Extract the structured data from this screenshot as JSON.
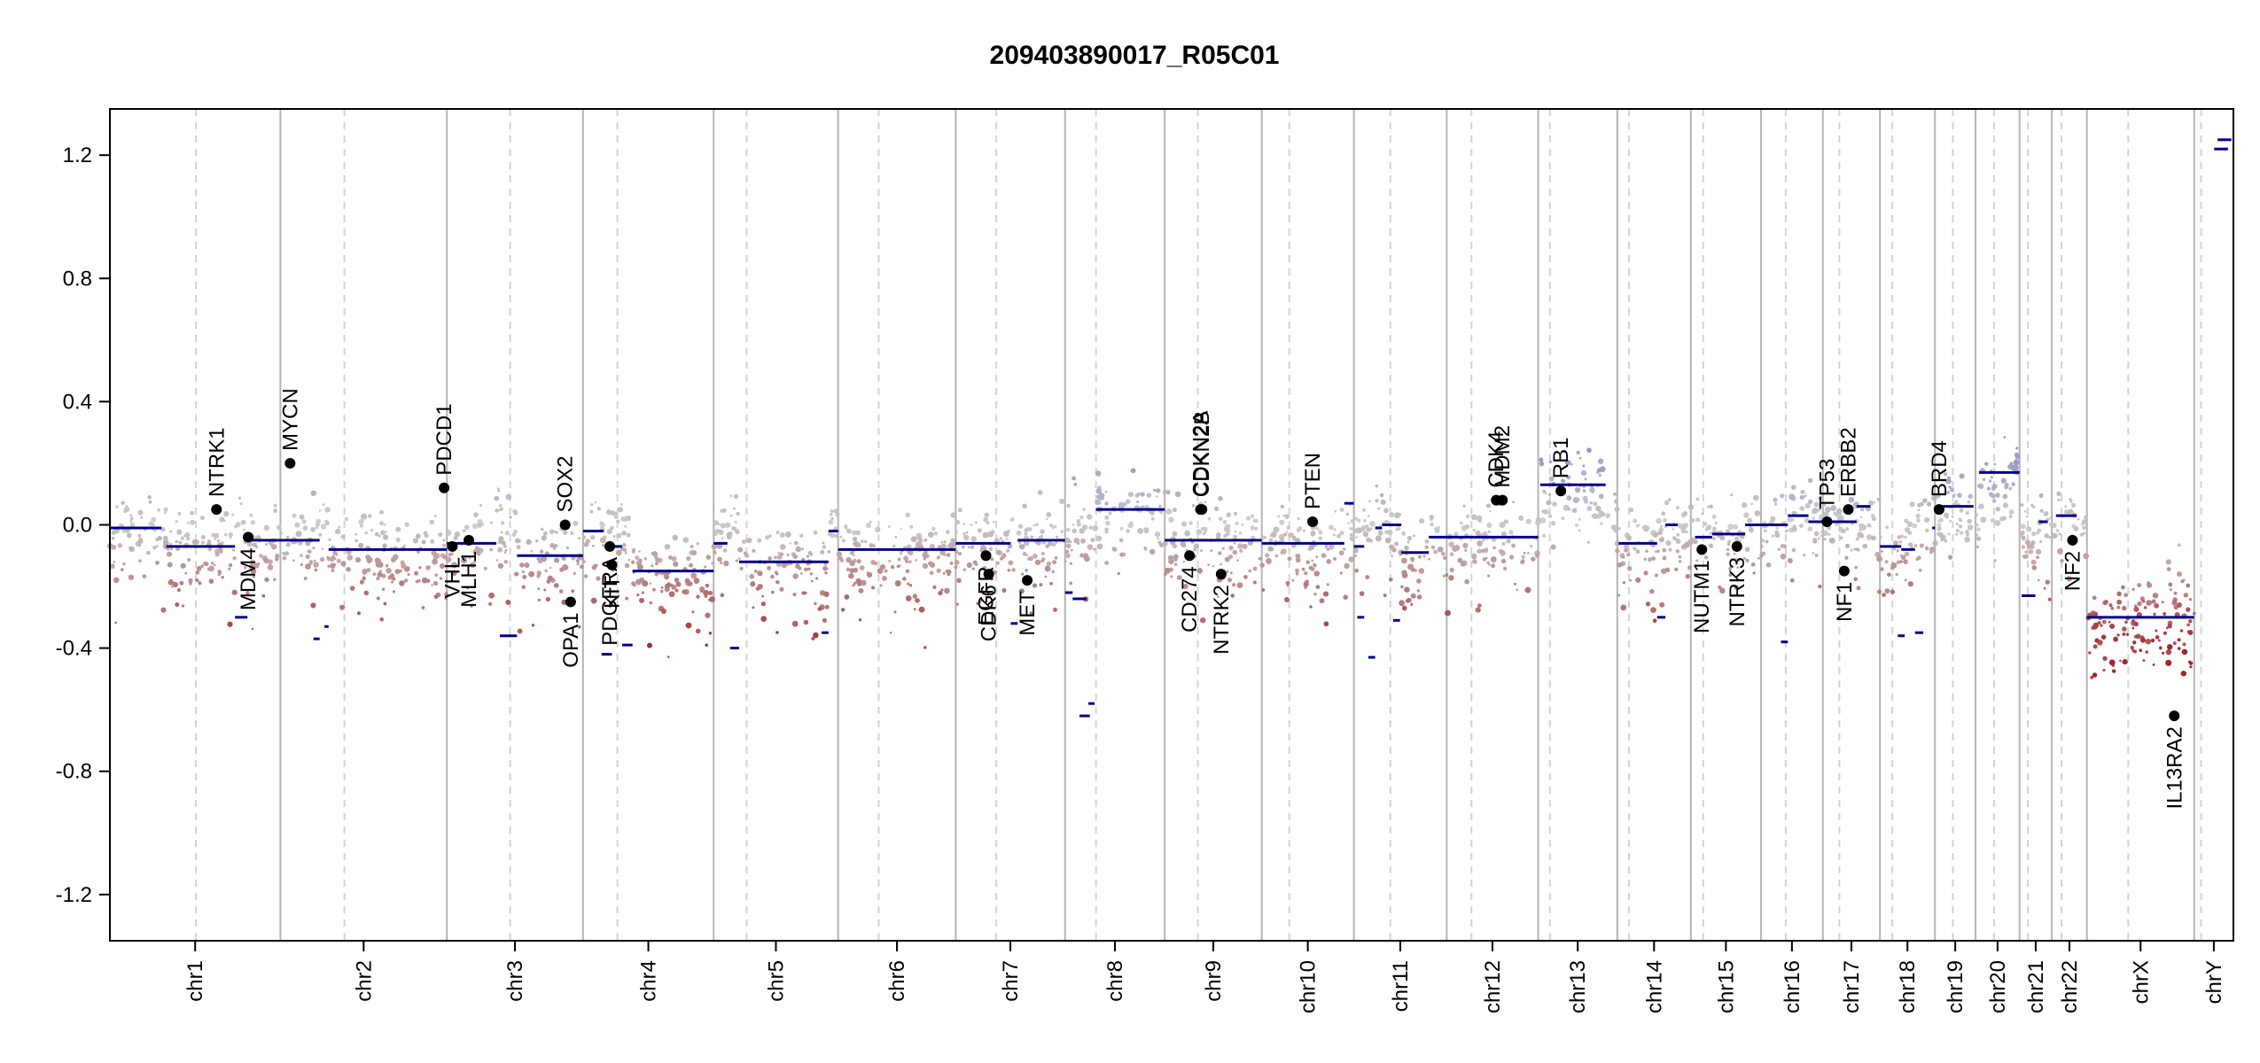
{
  "chart_data": {
    "type": "scatter",
    "title": "209403890017_R05C01",
    "xlabel": "",
    "ylabel": "",
    "ylim": [
      -1.35,
      1.35
    ],
    "yticks": [
      1.2,
      0.8,
      0.4,
      0.0,
      -0.4,
      -0.8,
      -1.2
    ],
    "ytick_labels": [
      "1.2",
      "0.8",
      "0.4",
      "0.0",
      "-0.4",
      "-0.8",
      "-1.2"
    ],
    "grid": false,
    "colors": {
      "gain": "#8f91c7",
      "loss": "#a0282a",
      "neutral": "#c8c8c8",
      "segment": "#00008b",
      "boundary": "#b4b4b4",
      "gene_point": "#000000"
    },
    "chromosomes": [
      {
        "name": "chr1",
        "start": 0,
        "end": 248,
        "centromere": 125
      },
      {
        "name": "chr2",
        "start": 248,
        "end": 490,
        "centromere": 341
      },
      {
        "name": "chr3",
        "start": 490,
        "end": 688,
        "centromere": 582
      },
      {
        "name": "chr4",
        "start": 688,
        "end": 878,
        "centromere": 738
      },
      {
        "name": "chr5",
        "start": 878,
        "end": 1059,
        "centromere": 926
      },
      {
        "name": "chr6",
        "start": 1059,
        "end": 1230,
        "centromere": 1118
      },
      {
        "name": "chr7",
        "start": 1230,
        "end": 1389,
        "centromere": 1289
      },
      {
        "name": "chr8",
        "start": 1389,
        "end": 1534,
        "centromere": 1434
      },
      {
        "name": "chr9",
        "start": 1534,
        "end": 1675,
        "centromere": 1582
      },
      {
        "name": "chr10",
        "start": 1675,
        "end": 1809,
        "centromere": 1715
      },
      {
        "name": "chr11",
        "start": 1809,
        "end": 1944,
        "centromere": 1862
      },
      {
        "name": "chr12",
        "start": 1944,
        "end": 2077,
        "centromere": 1980
      },
      {
        "name": "chr13",
        "start": 2077,
        "end": 2192,
        "centromere": 2094
      },
      {
        "name": "chr14",
        "start": 2192,
        "end": 2299,
        "centromere": 2209
      },
      {
        "name": "chr15",
        "start": 2299,
        "end": 2401,
        "centromere": 2317
      },
      {
        "name": "chr16",
        "start": 2401,
        "end": 2491,
        "centromere": 2437
      },
      {
        "name": "chr17",
        "start": 2491,
        "end": 2574,
        "centromere": 2515
      },
      {
        "name": "chr18",
        "start": 2574,
        "end": 2654,
        "centromere": 2592
      },
      {
        "name": "chr19",
        "start": 2654,
        "end": 2713,
        "centromere": 2680
      },
      {
        "name": "chr20",
        "start": 2713,
        "end": 2777,
        "centromere": 2740
      },
      {
        "name": "chr21",
        "start": 2777,
        "end": 2824,
        "centromere": 2789
      },
      {
        "name": "chr22",
        "start": 2824,
        "end": 2875,
        "centromere": 2838
      },
      {
        "name": "chrX",
        "start": 2875,
        "end": 3031,
        "centromere": 2935
      },
      {
        "name": "chrY",
        "start": 3031,
        "end": 3088,
        "centromere": 3041
      }
    ],
    "segments": [
      {
        "x0": 0,
        "x1": 75,
        "y": -0.01
      },
      {
        "x0": 82,
        "x1": 182,
        "y": -0.07
      },
      {
        "x0": 182,
        "x1": 200,
        "y": -0.3
      },
      {
        "x0": 200,
        "x1": 248,
        "y": -0.05
      },
      {
        "x0": 248,
        "x1": 305,
        "y": -0.05
      },
      {
        "x0": 296,
        "x1": 305,
        "y": -0.37
      },
      {
        "x0": 312,
        "x1": 318,
        "y": -0.33
      },
      {
        "x0": 318,
        "x1": 490,
        "y": -0.08
      },
      {
        "x0": 490,
        "x1": 562,
        "y": -0.06
      },
      {
        "x0": 567,
        "x1": 592,
        "y": -0.36
      },
      {
        "x0": 592,
        "x1": 688,
        "y": -0.1
      },
      {
        "x0": 688,
        "x1": 718,
        "y": -0.02
      },
      {
        "x0": 715,
        "x1": 730,
        "y": -0.42
      },
      {
        "x0": 730,
        "x1": 745,
        "y": -0.07
      },
      {
        "x0": 745,
        "x1": 760,
        "y": -0.39
      },
      {
        "x0": 760,
        "x1": 878,
        "y": -0.15
      },
      {
        "x0": 878,
        "x1": 898,
        "y": -0.06
      },
      {
        "x0": 902,
        "x1": 915,
        "y": -0.4
      },
      {
        "x0": 915,
        "x1": 1045,
        "y": -0.12
      },
      {
        "x0": 1035,
        "x1": 1045,
        "y": -0.35
      },
      {
        "x0": 1045,
        "x1": 1059,
        "y": -0.02
      },
      {
        "x0": 1059,
        "x1": 1230,
        "y": -0.08
      },
      {
        "x0": 1230,
        "x1": 1310,
        "y": -0.06
      },
      {
        "x0": 1310,
        "x1": 1320,
        "y": -0.32
      },
      {
        "x0": 1320,
        "x1": 1389,
        "y": -0.05
      },
      {
        "x0": 1389,
        "x1": 1400,
        "y": -0.22
      },
      {
        "x0": 1400,
        "x1": 1420,
        "y": -0.24
      },
      {
        "x0": 1410,
        "x1": 1425,
        "y": -0.62
      },
      {
        "x0": 1423,
        "x1": 1432,
        "y": -0.58
      },
      {
        "x0": 1434,
        "x1": 1534,
        "y": 0.05
      },
      {
        "x0": 1534,
        "x1": 1675,
        "y": -0.05
      },
      {
        "x0": 1675,
        "x1": 1795,
        "y": -0.06
      },
      {
        "x0": 1795,
        "x1": 1809,
        "y": 0.07
      },
      {
        "x0": 1809,
        "x1": 1824,
        "y": -0.07
      },
      {
        "x0": 1814,
        "x1": 1824,
        "y": -0.3
      },
      {
        "x0": 1830,
        "x1": 1840,
        "y": -0.43
      },
      {
        "x0": 1840,
        "x1": 1850,
        "y": -0.01
      },
      {
        "x0": 1850,
        "x1": 1878,
        "y": 0.0
      },
      {
        "x0": 1866,
        "x1": 1876,
        "y": -0.31
      },
      {
        "x0": 1878,
        "x1": 1918,
        "y": -0.09
      },
      {
        "x0": 1918,
        "x1": 2077,
        "y": -0.04
      },
      {
        "x0": 2080,
        "x1": 2175,
        "y": 0.13
      },
      {
        "x0": 2194,
        "x1": 2250,
        "y": -0.06
      },
      {
        "x0": 2250,
        "x1": 2262,
        "y": -0.3
      },
      {
        "x0": 2262,
        "x1": 2280,
        "y": 0.0
      },
      {
        "x0": 2305,
        "x1": 2330,
        "y": -0.04
      },
      {
        "x0": 2330,
        "x1": 2378,
        "y": -0.03
      },
      {
        "x0": 2378,
        "x1": 2440,
        "y": 0.0
      },
      {
        "x0": 2430,
        "x1": 2440,
        "y": -0.38
      },
      {
        "x0": 2440,
        "x1": 2470,
        "y": 0.03
      },
      {
        "x0": 2470,
        "x1": 2540,
        "y": 0.01
      },
      {
        "x0": 2540,
        "x1": 2560,
        "y": 0.06
      },
      {
        "x0": 2574,
        "x1": 2605,
        "y": -0.07
      },
      {
        "x0": 2605,
        "x1": 2625,
        "y": -0.08
      },
      {
        "x0": 2600,
        "x1": 2610,
        "y": -0.36
      },
      {
        "x0": 2625,
        "x1": 2637,
        "y": -0.35
      },
      {
        "x0": 2650,
        "x1": 2654,
        "y": -0.01
      },
      {
        "x0": 2660,
        "x1": 2710,
        "y": 0.06
      },
      {
        "x0": 2718,
        "x1": 2777,
        "y": 0.17
      },
      {
        "x0": 2780,
        "x1": 2800,
        "y": -0.23
      },
      {
        "x0": 2805,
        "x1": 2818,
        "y": 0.01
      },
      {
        "x0": 2830,
        "x1": 2860,
        "y": 0.03
      },
      {
        "x0": 2875,
        "x1": 3031,
        "y": -0.3
      },
      {
        "x0": 3060,
        "x1": 3080,
        "y": 1.22
      },
      {
        "x0": 3065,
        "x1": 3085,
        "y": 1.25
      }
    ],
    "genes": [
      {
        "name": "NTRK1",
        "x": 155,
        "y": 0.05,
        "label": "above"
      },
      {
        "name": "MDM4",
        "x": 201,
        "y": -0.04,
        "label": "below"
      },
      {
        "name": "MYCN",
        "x": 262,
        "y": 0.2,
        "label": "above"
      },
      {
        "name": "PDCD1",
        "x": 486,
        "y": 0.12,
        "label": "above"
      },
      {
        "name": "VHL",
        "x": 498,
        "y": -0.07,
        "label": "below"
      },
      {
        "name": "MLH1",
        "x": 522,
        "y": -0.05,
        "label": "below"
      },
      {
        "name": "SOX2",
        "x": 662,
        "y": 0.0,
        "label": "above"
      },
      {
        "name": "OPA1",
        "x": 670,
        "y": -0.25,
        "label": "below"
      },
      {
        "name": "PDGFRA",
        "x": 727,
        "y": -0.07,
        "label": "below"
      },
      {
        "name": "KIT",
        "x": 730,
        "y": -0.13,
        "label": "below"
      },
      {
        "name": "EGFR",
        "x": 1274,
        "y": -0.1,
        "label": "below"
      },
      {
        "name": "CDK6",
        "x": 1278,
        "y": -0.16,
        "label": "below"
      },
      {
        "name": "MET",
        "x": 1334,
        "y": -0.18,
        "label": "below"
      },
      {
        "name": "CD274",
        "x": 1570,
        "y": -0.1,
        "label": "below"
      },
      {
        "name": "CDKN2A",
        "x": 1586,
        "y": 0.05,
        "label": "above"
      },
      {
        "name": "CDKN2B",
        "x": 1588,
        "y": 0.05,
        "label": "above"
      },
      {
        "name": "NTRK2",
        "x": 1616,
        "y": -0.16,
        "label": "below"
      },
      {
        "name": "PTEN",
        "x": 1749,
        "y": 0.01,
        "label": "above"
      },
      {
        "name": "CDK4",
        "x": 2016,
        "y": 0.08,
        "label": "above"
      },
      {
        "name": "MDM2",
        "x": 2025,
        "y": 0.08,
        "label": "above"
      },
      {
        "name": "RB1",
        "x": 2110,
        "y": 0.11,
        "label": "above"
      },
      {
        "name": "NUTM1",
        "x": 2315,
        "y": -0.08,
        "label": "below"
      },
      {
        "name": "NTRK3",
        "x": 2366,
        "y": -0.07,
        "label": "below"
      },
      {
        "name": "TP53",
        "x": 2497,
        "y": 0.01,
        "label": "above"
      },
      {
        "name": "NF1",
        "x": 2522,
        "y": -0.15,
        "label": "below"
      },
      {
        "name": "ERBB2",
        "x": 2528,
        "y": 0.05,
        "label": "above"
      },
      {
        "name": "BRD4",
        "x": 2660,
        "y": 0.05,
        "label": "above"
      },
      {
        "name": "NF2",
        "x": 2854,
        "y": -0.05,
        "label": "below"
      },
      {
        "name": "IL13RA2",
        "x": 3002,
        "y": -0.62,
        "label": "below"
      }
    ]
  }
}
